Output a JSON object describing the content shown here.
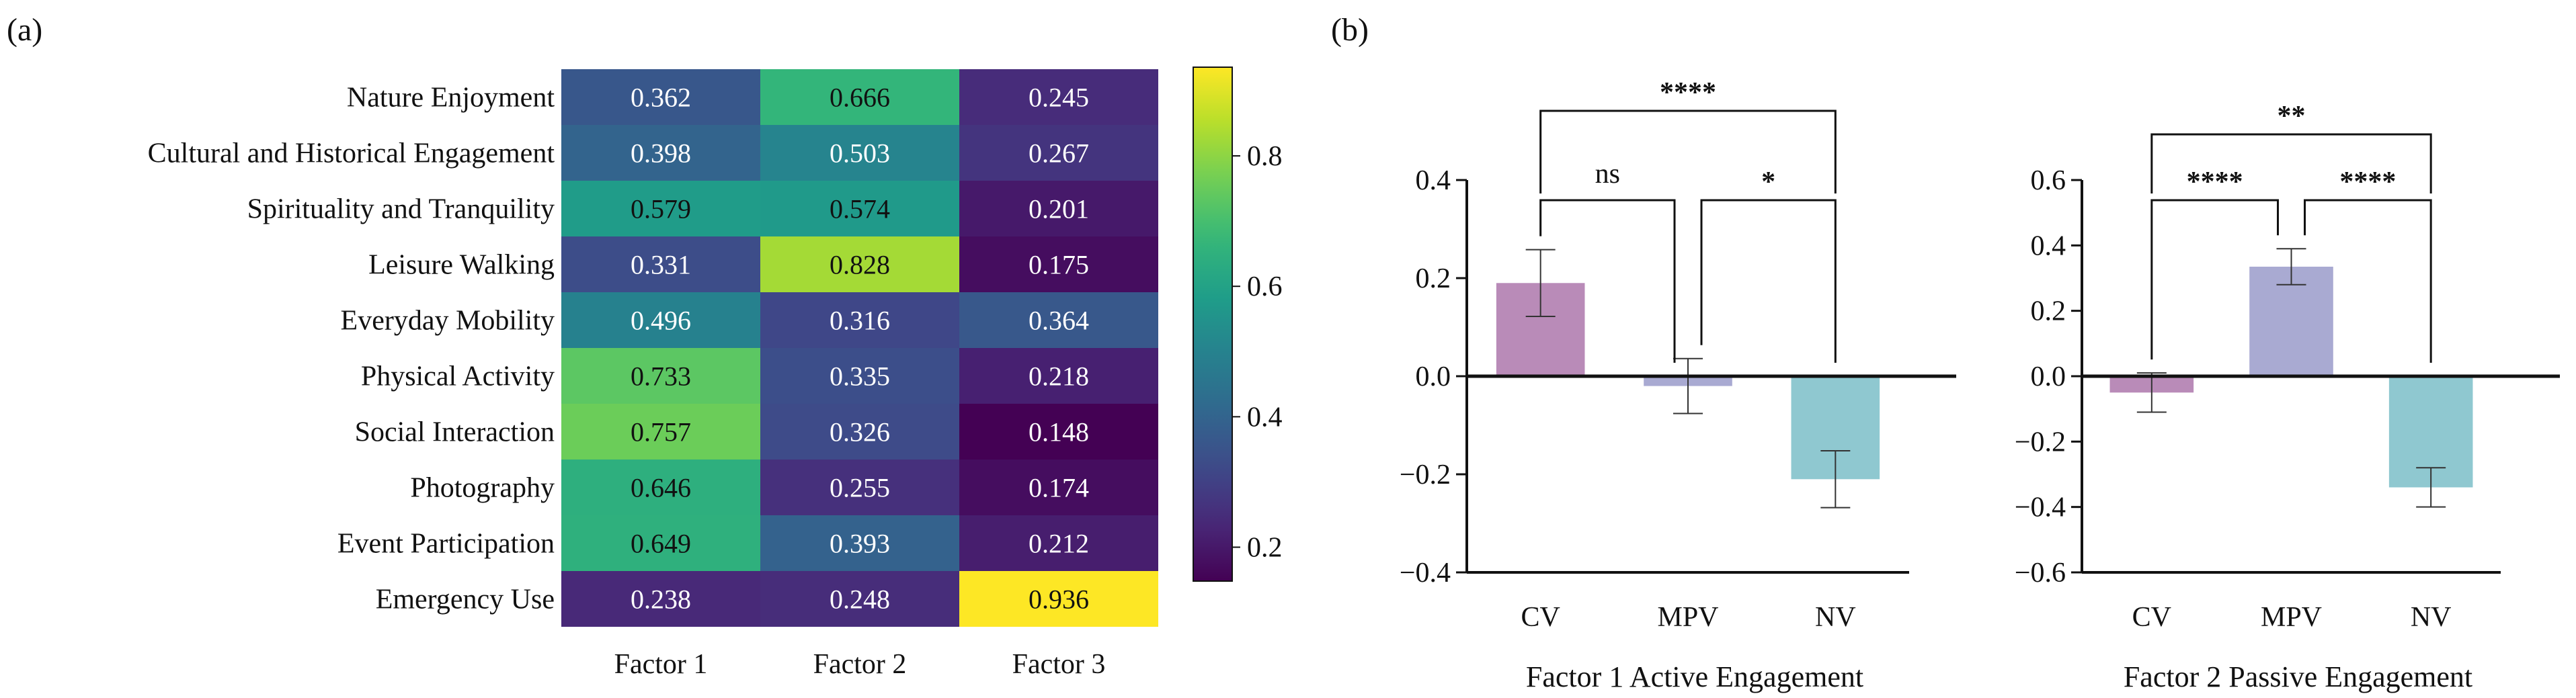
{
  "panel_labels": {
    "a": "(a)",
    "b": "(b)"
  },
  "chart_data": [
    {
      "type": "heatmap",
      "title": "",
      "rows": [
        "Nature Enjoyment",
        "Cultural and Historical Engagement",
        "Spirituality and Tranquility",
        "Leisure Walking",
        "Everyday Mobility",
        "Physical Activity",
        "Social Interaction",
        "Photography",
        "Event Participation",
        "Emergency Use"
      ],
      "columns": [
        "Factor 1",
        "Factor 2",
        "Factor 3"
      ],
      "values": [
        [
          0.362,
          0.666,
          0.245
        ],
        [
          0.398,
          0.503,
          0.267
        ],
        [
          0.579,
          0.574,
          0.201
        ],
        [
          0.331,
          0.828,
          0.175
        ],
        [
          0.496,
          0.316,
          0.364
        ],
        [
          0.733,
          0.335,
          0.218
        ],
        [
          0.757,
          0.326,
          0.148
        ],
        [
          0.646,
          0.255,
          0.174
        ],
        [
          0.649,
          0.393,
          0.212
        ],
        [
          0.238,
          0.248,
          0.936
        ]
      ],
      "colorbar": {
        "range": [
          0.148,
          0.936
        ],
        "ticks": [
          0.2,
          0.4,
          0.6,
          0.8
        ],
        "tick_labels": [
          "0.2",
          "0.4",
          "0.6",
          "0.8"
        ],
        "colormap": "viridis"
      }
    },
    {
      "type": "bar",
      "categories": [
        "CV",
        "MPV",
        "NV"
      ],
      "values": [
        0.19,
        -0.02,
        -0.21
      ],
      "errors": [
        0.068,
        0.056,
        0.058
      ],
      "colors": [
        "#b98bb8",
        "#a9aad2",
        "#8fc8d0"
      ],
      "xlabel": "Factor 1 Active Engagement",
      "ylabel": "",
      "ylim": [
        -0.4,
        0.4
      ],
      "yticks": [
        -0.4,
        -0.2,
        0.0,
        0.2,
        0.4
      ],
      "ytick_labels": [
        "−0.4",
        "−0.2",
        "0.0",
        "0.2",
        "0.4"
      ],
      "significance": [
        {
          "from": 0,
          "to": 1,
          "label": "ns",
          "level": 1
        },
        {
          "from": 1,
          "to": 2,
          "label": "*",
          "level": 1
        },
        {
          "from": 0,
          "to": 2,
          "label": "****",
          "level": 2
        }
      ]
    },
    {
      "type": "bar",
      "categories": [
        "CV",
        "MPV",
        "NV"
      ],
      "values": [
        -0.05,
        0.335,
        -0.34
      ],
      "errors": [
        0.06,
        0.055,
        0.06
      ],
      "colors": [
        "#b98bb8",
        "#a9aad2",
        "#8fc8d0"
      ],
      "xlabel": "Factor  2 Passive Engagement",
      "ylabel": "",
      "ylim": [
        -0.6,
        0.6
      ],
      "yticks": [
        -0.6,
        -0.4,
        -0.2,
        0.0,
        0.2,
        0.4,
        0.6
      ],
      "ytick_labels": [
        "−0.6",
        "−0.4",
        "−0.2",
        "0.0",
        "0.2",
        "0.4",
        "0.6"
      ],
      "significance": [
        {
          "from": 0,
          "to": 1,
          "label": "****",
          "level": 1
        },
        {
          "from": 1,
          "to": 2,
          "label": "****",
          "level": 1
        },
        {
          "from": 0,
          "to": 2,
          "label": "**",
          "level": 2
        }
      ]
    }
  ]
}
